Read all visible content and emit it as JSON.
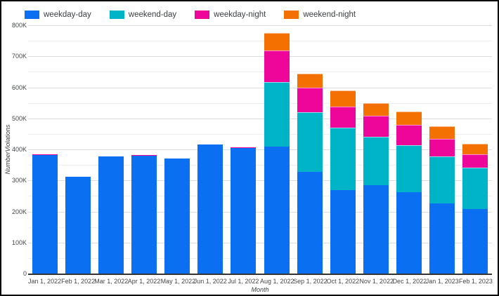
{
  "chart_data": {
    "type": "bar",
    "stacked": true,
    "title": "",
    "xlabel": "Month",
    "ylabel": "NumberViolations",
    "ylim": [
      0,
      800000
    ],
    "y_major_tick_step": 100000,
    "y_minor_gridline_step": 50000,
    "y_tick_labels": [
      "0",
      "100K",
      "200K",
      "300K",
      "400K",
      "500K",
      "600K",
      "700K",
      "800K"
    ],
    "legend_position": "top",
    "grid": true,
    "background_color": "#ffffff",
    "categories": [
      "Jan 1, 2022",
      "Feb 1, 2022",
      "Mar 1, 2022",
      "Apr 1, 2022",
      "May 1, 2022",
      "Jun 1, 2022",
      "Jul 1, 2022",
      "Aug 1, 2022",
      "Sep 1, 2022",
      "Oct 1, 2022",
      "Nov 1, 2022",
      "Dec 1, 2022",
      "Jan 1, 2023",
      "Feb 1, 2023"
    ],
    "series": [
      {
        "name": "weekday-day",
        "color": "#0a6ff0",
        "values": [
          382000,
          312000,
          377000,
          379000,
          371000,
          416000,
          404000,
          409000,
          328000,
          269000,
          285000,
          262000,
          226000,
          208000
        ]
      },
      {
        "name": "weekend-day",
        "color": "#00b4c7",
        "values": [
          0,
          0,
          0,
          0,
          0,
          0,
          0,
          208000,
          191000,
          201000,
          156000,
          152000,
          151000,
          133000
        ]
      },
      {
        "name": "weekday-night",
        "color": "#ee0599",
        "values": [
          3000,
          0,
          0,
          3000,
          0,
          0,
          3000,
          102000,
          80000,
          68000,
          68000,
          65000,
          57000,
          43000
        ]
      },
      {
        "name": "weekend-night",
        "color": "#f47000",
        "values": [
          0,
          0,
          0,
          0,
          0,
          0,
          0,
          56000,
          45000,
          52000,
          41000,
          43000,
          41000,
          34000
        ]
      }
    ]
  }
}
